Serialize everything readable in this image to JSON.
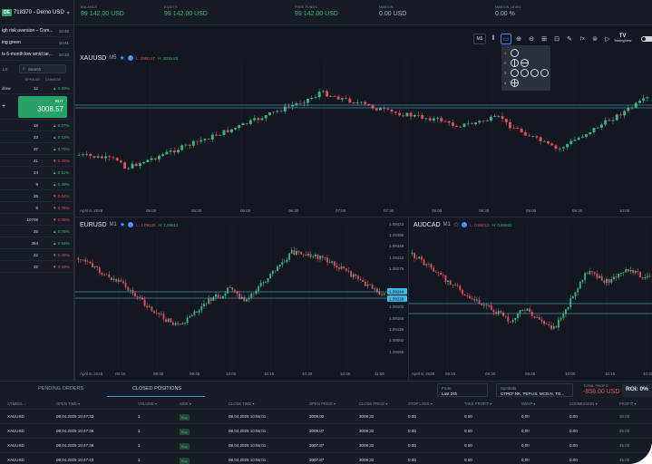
{
  "account": {
    "badge": "DE",
    "title": "718370 - Demo USD",
    "caret": "▾"
  },
  "metrics": [
    {
      "label": "BALANCE",
      "value": "99 142.00 USD",
      "color": "green"
    },
    {
      "label": "EQUITY",
      "value": "99 142.00 USD",
      "color": "green"
    },
    {
      "label": "FREE FUNDS",
      "value": "99 142.00 USD",
      "color": "green"
    },
    {
      "label": "MARGIN",
      "value": "0.00 USD",
      "color": "white"
    },
    {
      "label": "MARGIN LEVEL",
      "value": "0.00 %",
      "color": "white"
    }
  ],
  "news": [
    {
      "text": "igh risk aversion – Com...",
      "time": "10:46"
    },
    {
      "text": "ing green",
      "time": "10:41"
    },
    {
      "text": "ts 6-month low amid tar...",
      "time": "10:33"
    }
  ],
  "sidebar": {
    "tab_label": "LS",
    "search_placeholder": "Search",
    "col_spread": "SPREAD",
    "col_change": "CHANGE",
    "first_row": {
      "c0": "draw",
      "spread": "12",
      "change": "▲ 0.90%",
      "dir": "up"
    },
    "buy_label": "BUY",
    "buy_price": "3008.57",
    "rows": [
      {
        "spread": "18",
        "change": "▲ 0.07%",
        "dir": "up"
      },
      {
        "spread": "23",
        "change": "▲ 0.13%",
        "dir": "up"
      },
      {
        "spread": "37",
        "change": "▲ 0.70%",
        "dir": "up"
      },
      {
        "spread": "41",
        "change": "▼ 0.45%",
        "dir": "dn"
      },
      {
        "spread": "24",
        "change": "▲ 0.11%",
        "dir": "up"
      },
      {
        "spread": "9",
        "change": "▲ 0.48%",
        "dir": "up"
      },
      {
        "spread": "25",
        "change": "▼ 0.04%",
        "dir": "dn"
      },
      {
        "spread": "8",
        "change": "▼ 0.76%",
        "dir": "dn"
      },
      {
        "spread": "10708",
        "change": "▼ 0.05%",
        "dir": "dn"
      },
      {
        "spread": "25",
        "change": "▲ 0.75%",
        "dir": "up"
      },
      {
        "spread": "384",
        "change": "▲ 0.94%",
        "dir": "up"
      },
      {
        "spread": "22",
        "change": "▼ 0.48%",
        "dir": "dn"
      },
      {
        "spread": "32",
        "change": "▼ 0.58%",
        "dir": "dn"
      }
    ]
  },
  "toolbar": {
    "interval": "M5",
    "tv_label": "TradingView",
    "layout_numbers": [
      "1",
      "2",
      "3",
      "4"
    ]
  },
  "charts": {
    "xauusd": {
      "symbol": "XAUUSD",
      "tf": "M5",
      "low": "L: 2980.57",
      "high": "H: 3015.83",
      "xlabels": [
        "April 8, 2025",
        "05:00",
        "05:30",
        "06:00",
        "06:30",
        "07:00",
        "07:30",
        "08:00",
        "08:30",
        "09:00",
        "09:30",
        "10:00",
        "10:30"
      ]
    },
    "eurusd": {
      "symbol": "EURUSD",
      "tf": "M1",
      "low": "L: 1.09120",
      "high": "H: 1.09812",
      "ylabels": [
        "1.09422",
        "1.09385",
        "1.09349",
        "1.09312",
        "1.09275",
        "1.09244",
        "1.09228",
        "1.09202",
        "1.09165",
        "1.09129",
        "1.09092",
        "1.09055"
      ],
      "tag_upper": "1.09244",
      "tag_lower": "1.09228",
      "xlabels": [
        "April 8, 2025",
        "09:15",
        "09:30",
        "09:45",
        "10:00",
        "10:15",
        "10:30",
        "10:45",
        "11:00"
      ]
    },
    "audcad": {
      "symbol": "AUDCAD",
      "tf": "M1",
      "low": "L: 0.86010",
      "high": "H: 0.86682",
      "xlabels": [
        "April 8, 2025",
        "09:15",
        "09:30",
        "09:45",
        "10:00",
        "10:15",
        "10:30",
        "10:45"
      ]
    }
  },
  "bottom": {
    "tab_pending": "PENDING ORDERS",
    "tab_closed": "CLOSED POSITIONS",
    "from_label": "From",
    "from_value": "Last 24h",
    "symbols_label": "Symbols",
    "symbols_value": "CTPCF.NK, PEP.US, MCD.N, TG...",
    "total_profit_label": "TOTAL PROFIT",
    "total_profit_value": "-858.00 USD",
    "roi": "ROI: 0%",
    "headers": [
      "SYMBOL ↓",
      "OPEN TIME ▾",
      "VOLUME ▾",
      "SIDE ▾",
      "CLOSE TIME ▾",
      "OPEN PRICE ▾",
      "CLOSE PRICE ▾",
      "STOP LOSS ▾",
      "TAKE PROFIT ▾",
      "SWAP ▾",
      "COMMISSION ▾",
      "PROFIT ▾"
    ],
    "rows": [
      [
        "XAUUSD",
        "08.04.2025 10:47:32",
        "1",
        "Buy",
        "08.04.2025 10:56:01",
        "3008.02",
        "3008.32",
        "0.00",
        "0.00",
        "0.00",
        "0.00",
        "30.00"
      ],
      [
        "XAUUSD",
        "08.04.2025 10:47:36",
        "1",
        "Buy",
        "08.04.2025 10:56:01",
        "3008.07",
        "3008.32",
        "0.00",
        "0.00",
        "0.00",
        "0.00",
        "25.00"
      ],
      [
        "XAUUSD",
        "08.04.2025 10:47:38",
        "1",
        "Buy",
        "08.04.2025 10:56:01",
        "3007.87",
        "3008.32",
        "0.00",
        "0.00",
        "0.00",
        "0.00",
        "45.00"
      ],
      [
        "XAUUSD",
        "08.04.2025 10:47:43",
        "1",
        "Buy",
        "08.04.2025 10:56:01",
        "3007.87",
        "3008.32",
        "0.00",
        "0.00",
        "0.00",
        "0.00",
        "45.00"
      ]
    ]
  },
  "colors": {
    "up": "#36b37e",
    "down": "#e04b5a",
    "accent": "#3d8ef0",
    "bg": "#131722",
    "line": "#5fc3e4"
  }
}
